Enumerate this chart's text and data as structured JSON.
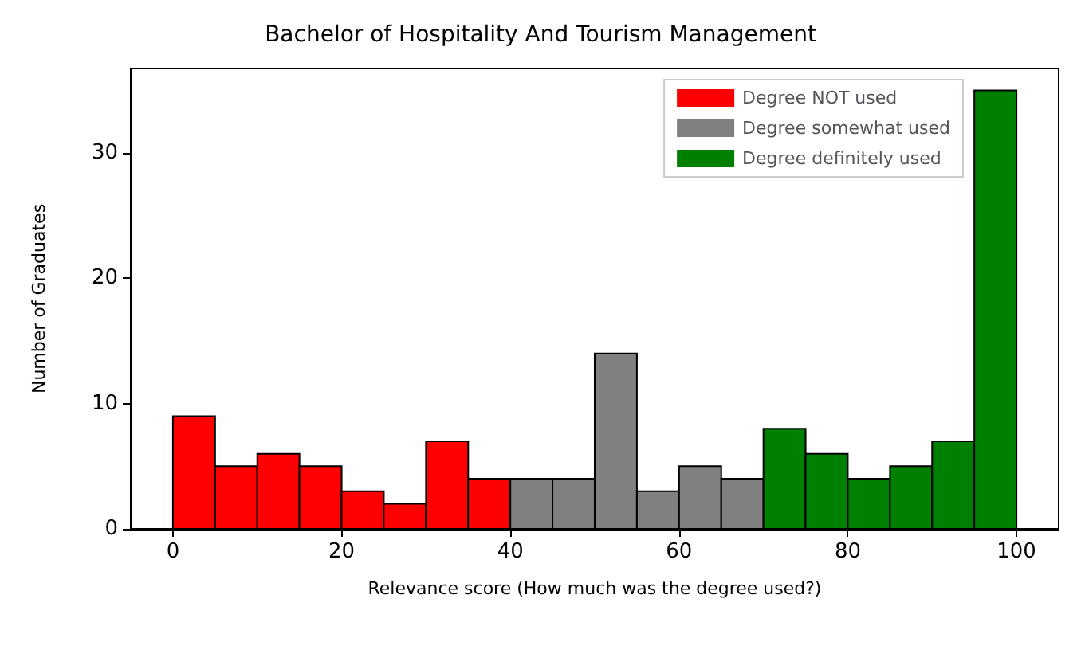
{
  "chart_data": {
    "type": "histogram",
    "title": "Bachelor of Hospitality And Tourism Management",
    "xlabel": "Relevance score (How much was the degree used?)",
    "ylabel": "Number of Graduates",
    "bins": [
      0,
      5,
      10,
      15,
      20,
      25,
      30,
      35,
      40,
      45,
      50,
      55,
      60,
      65,
      70,
      75,
      80,
      85,
      90,
      95,
      100
    ],
    "series": [
      {
        "name": "Degree NOT used",
        "color": "#ff0000",
        "values": [
          9,
          5,
          6,
          5,
          3,
          2,
          7,
          4,
          null,
          null,
          null,
          null,
          null,
          null,
          null,
          null,
          null,
          null,
          null,
          null
        ]
      },
      {
        "name": "Degree somewhat used",
        "color": "#808080",
        "values": [
          null,
          null,
          null,
          null,
          null,
          null,
          null,
          null,
          4,
          4,
          14,
          3,
          5,
          4,
          null,
          null,
          null,
          null,
          null,
          null
        ]
      },
      {
        "name": "Degree definitely used",
        "color": "#008000",
        "values": [
          null,
          null,
          null,
          null,
          null,
          null,
          null,
          null,
          null,
          null,
          null,
          null,
          null,
          null,
          8,
          6,
          4,
          5,
          7,
          35
        ]
      }
    ],
    "xlim": [
      -5,
      105
    ],
    "xticks": [
      0,
      20,
      40,
      60,
      80,
      100
    ],
    "ylim": [
      0,
      36.75
    ],
    "yticks": [
      0,
      10,
      20,
      30
    ],
    "grid": false,
    "legend": "top right"
  }
}
